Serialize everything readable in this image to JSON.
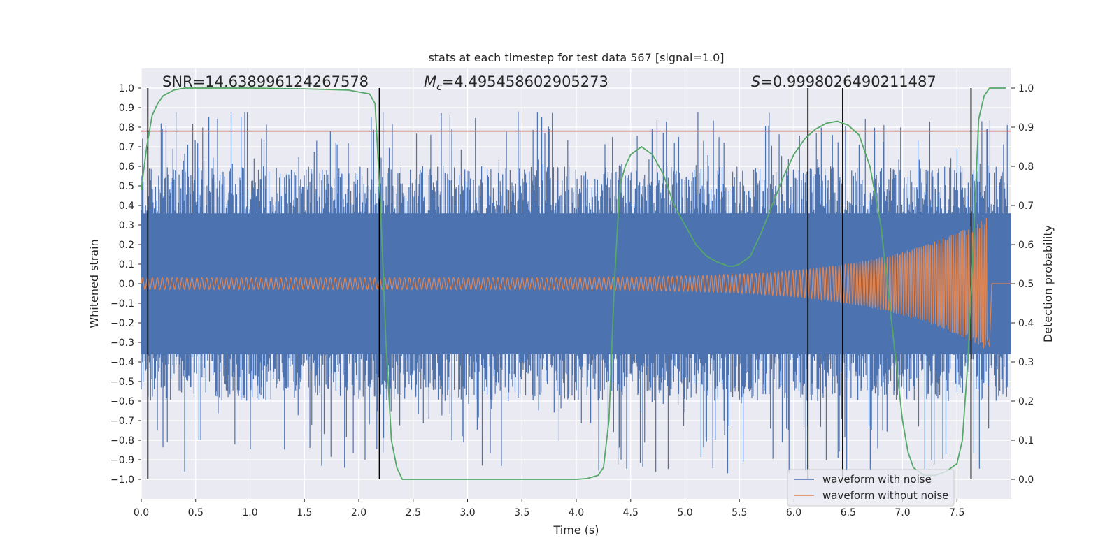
{
  "chart_data": {
    "type": "line",
    "title": "stats at each timestep for test data 567 [signal=1.0]",
    "xlabel": "Time (s)",
    "ylabel_left": "Whitened strain",
    "ylabel_right": "Detection probability",
    "xlim": [
      0.0,
      8.0
    ],
    "ylim_left": [
      -1.1,
      1.1
    ],
    "ylim_right": [
      -0.05,
      1.05
    ],
    "xticks": [
      0.0,
      0.5,
      1.0,
      1.5,
      2.0,
      2.5,
      3.0,
      3.5,
      4.0,
      4.5,
      5.0,
      5.5,
      6.0,
      6.5,
      7.0,
      7.5
    ],
    "xtick_labels": [
      "0.0",
      "0.5",
      "1.0",
      "1.5",
      "2.0",
      "2.5",
      "3.0",
      "3.5",
      "4.0",
      "4.5",
      "5.0",
      "5.5",
      "6.0",
      "6.5",
      "7.0",
      "7.5"
    ],
    "yticks_left": [
      1.0,
      0.9,
      0.8,
      0.7,
      0.6,
      0.5,
      0.4,
      0.3,
      0.2,
      0.1,
      0.0,
      -0.1,
      -0.2,
      -0.3,
      -0.4,
      -0.5,
      -0.6,
      -0.7,
      -0.8,
      -0.9,
      -1.0
    ],
    "ytick_labels_left": [
      "1.0",
      "0.9",
      "0.8",
      "0.7",
      "0.6",
      "0.5",
      "0.4",
      "0.3",
      "0.2",
      "0.1",
      "0.0",
      "−0.1",
      "−0.2",
      "−0.3",
      "−0.4",
      "−0.5",
      "−0.6",
      "−0.7",
      "−0.8",
      "−0.9",
      "−1.0"
    ],
    "yticks_right": [
      1.0,
      0.9,
      0.8,
      0.7,
      0.6,
      0.5,
      0.4,
      0.3,
      0.2,
      0.1,
      0.0
    ],
    "ytick_labels_right": [
      "1.0",
      "0.9",
      "0.8",
      "0.7",
      "0.6",
      "0.5",
      "0.4",
      "0.3",
      "0.2",
      "0.1",
      "0.0"
    ],
    "annotations": {
      "snr": "SNR=14.638996124267578",
      "mc_symbol": "M",
      "mc_subscript": "c",
      "mc_value": "=4.495458602905273",
      "s_symbol": "S",
      "s_value": "=0.9998026490211487"
    },
    "threshold_left": 0.78,
    "vertical_lines_x": [
      0.06,
      2.19,
      6.13,
      6.45,
      7.63
    ],
    "noisy_waveform": {
      "name": "waveform with noise",
      "color": "#4c72b0",
      "envelope_peak_max": 0.88,
      "envelope_peak_min": -0.97,
      "typical_amplitude": 0.55
    },
    "clean_waveform": {
      "name": "waveform without noise",
      "color": "#dd8452",
      "start_amplitude": 0.03,
      "peak_x": 7.78,
      "peak_amplitude": 0.34,
      "end_x": 7.8
    },
    "detection_probability": {
      "color": "#55a868",
      "x": [
        0.0,
        0.05,
        0.1,
        0.15,
        0.2,
        0.3,
        0.4,
        0.5,
        1.0,
        1.5,
        1.9,
        2.0,
        2.1,
        2.15,
        2.2,
        2.25,
        2.3,
        2.35,
        2.4,
        2.5,
        3.0,
        3.5,
        4.0,
        4.1,
        4.2,
        4.25,
        4.3,
        4.35,
        4.4,
        4.45,
        4.5,
        4.55,
        4.6,
        4.7,
        4.8,
        4.9,
        5.0,
        5.1,
        5.2,
        5.3,
        5.4,
        5.45,
        5.5,
        5.6,
        5.7,
        5.8,
        5.9,
        6.0,
        6.1,
        6.2,
        6.3,
        6.4,
        6.5,
        6.6,
        6.7,
        6.8,
        6.9,
        7.0,
        7.05,
        7.1,
        7.2,
        7.3,
        7.4,
        7.5,
        7.55,
        7.6,
        7.65,
        7.7,
        7.75,
        7.8,
        7.9,
        7.95
      ],
      "y": [
        0.74,
        0.85,
        0.93,
        0.96,
        0.98,
        0.995,
        1.0,
        1.0,
        1.0,
        0.998,
        0.995,
        0.99,
        0.985,
        0.96,
        0.7,
        0.35,
        0.1,
        0.03,
        0.0,
        0.0,
        0.0,
        0.0,
        0.0,
        0.002,
        0.01,
        0.03,
        0.15,
        0.5,
        0.75,
        0.8,
        0.83,
        0.84,
        0.85,
        0.83,
        0.78,
        0.7,
        0.65,
        0.6,
        0.57,
        0.555,
        0.545,
        0.545,
        0.55,
        0.57,
        0.63,
        0.7,
        0.77,
        0.83,
        0.87,
        0.895,
        0.91,
        0.915,
        0.905,
        0.88,
        0.8,
        0.65,
        0.4,
        0.15,
        0.07,
        0.03,
        0.01,
        0.01,
        0.02,
        0.04,
        0.1,
        0.3,
        0.6,
        0.92,
        0.98,
        1.0,
        1.0,
        1.0
      ]
    },
    "legend": {
      "placement": "lower-right",
      "entries": [
        "waveform with noise",
        "waveform without noise"
      ]
    },
    "colors": {
      "axes_bg": "#eaeaf2",
      "grid": "#ffffff",
      "threshold": "#c44e52",
      "vline": "#000000"
    }
  }
}
